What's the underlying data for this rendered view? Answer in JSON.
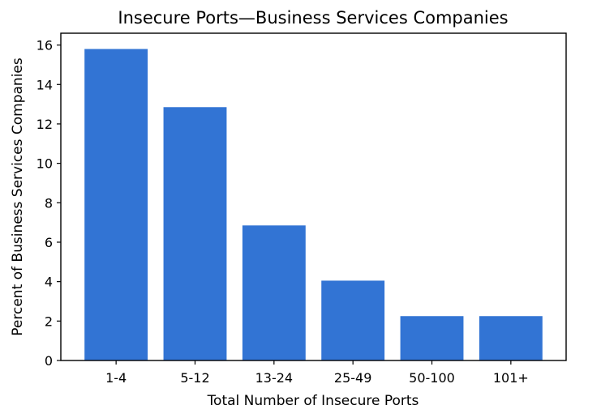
{
  "chart_data": {
    "type": "bar",
    "title": "Insecure Ports—Business Services Companies",
    "xlabel": "Total Number of Insecure Ports",
    "ylabel": "Percent of Business Services Companies",
    "categories": [
      "1-4",
      "5-12",
      "13-24",
      "25-49",
      "50-100",
      "101+"
    ],
    "values": [
      15.8,
      12.85,
      6.85,
      4.05,
      2.25,
      2.25
    ],
    "ylim": [
      0,
      16.6
    ],
    "yticks": [
      0,
      2,
      4,
      6,
      8,
      10,
      12,
      14,
      16
    ],
    "grid": false,
    "bar_color": "#3274d4"
  }
}
